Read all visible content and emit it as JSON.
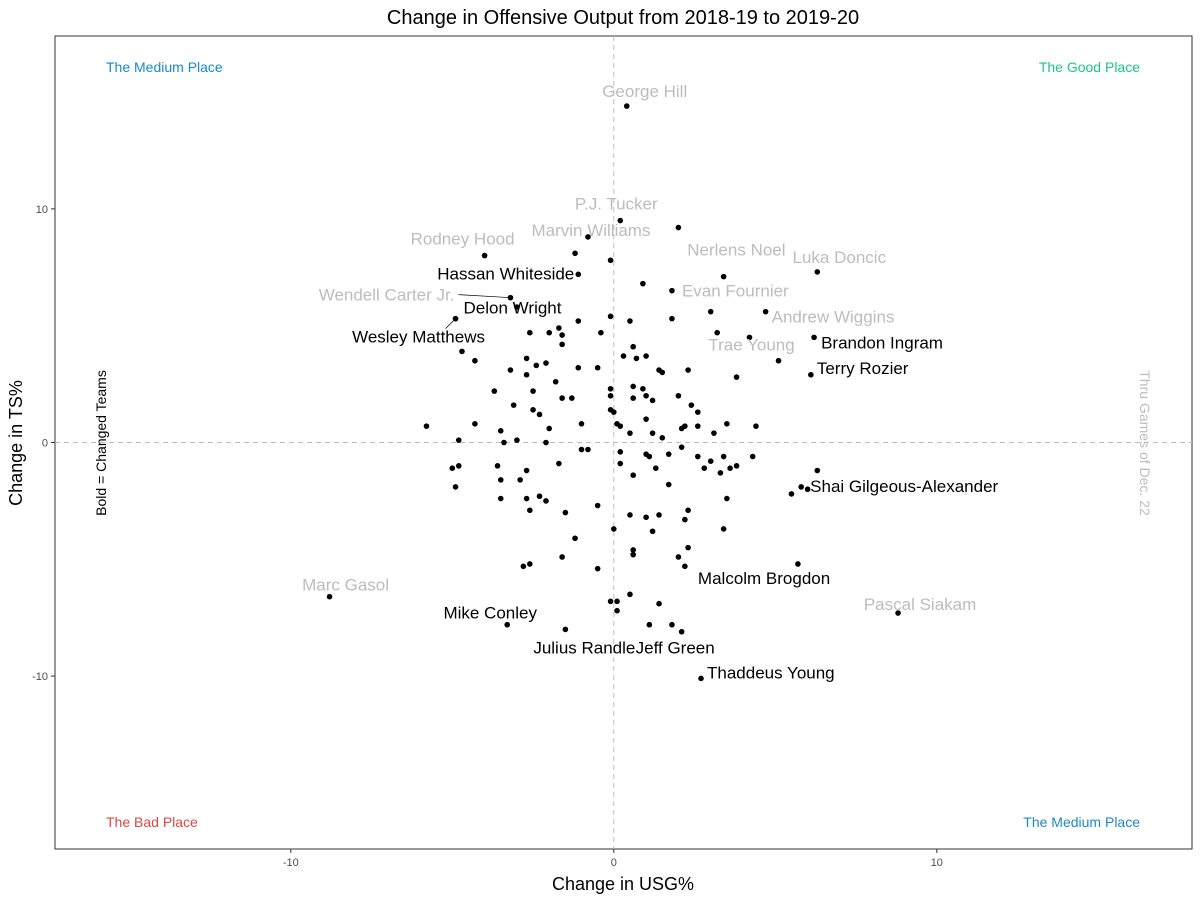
{
  "chart_data": {
    "type": "scatter",
    "title": "Change in Offensive Output from 2018-19 to 2019-20",
    "xlabel": "Change in USG%",
    "ylabel": "Change in TS%",
    "xlim": [
      -17.3,
      17.9
    ],
    "ylim": [
      -17.4,
      17.4
    ],
    "xticks": [
      -10,
      0,
      10
    ],
    "yticks": [
      -10,
      0,
      10
    ],
    "grid": false,
    "reference_lines": {
      "x": 0,
      "y": 0,
      "style": "dashed"
    },
    "side_notes": {
      "left": "Bold = Changed Teams",
      "right": "Thru Games of Dec. 22"
    },
    "quadrant_labels": [
      {
        "text": "The Medium Place",
        "corner": "top-left",
        "color": "#1a8ac6"
      },
      {
        "text": "The Good Place",
        "corner": "top-right",
        "color": "#1cc48a"
      },
      {
        "text": "The Bad Place",
        "corner": "bottom-left",
        "color": "#e04646"
      },
      {
        "text": "The Medium Place",
        "corner": "bottom-right",
        "color": "#1a8ac6"
      }
    ],
    "colors": {
      "point": "#000000",
      "same_team_label": "#bdbdbd",
      "changed_team_label": "#000000"
    },
    "labeled_points": [
      {
        "name": "George Hill",
        "x": 0.4,
        "y": 14.4,
        "changed_team": false
      },
      {
        "name": "P.J. Tucker",
        "x": 0.2,
        "y": 9.5,
        "changed_team": false
      },
      {
        "name": "Marvin Williams",
        "x": -0.8,
        "y": 8.8,
        "changed_team": false
      },
      {
        "name": "Nerlens Noel",
        "x": 2.0,
        "y": 9.2,
        "changed_team": false
      },
      {
        "name": "Rodney Hood",
        "x": -4.0,
        "y": 8.0,
        "changed_team": false
      },
      {
        "name": "Luka Doncic",
        "x": 6.3,
        "y": 7.3,
        "changed_team": false
      },
      {
        "name": "Hassan Whiteside",
        "x": -1.1,
        "y": 7.2,
        "changed_team": true
      },
      {
        "name": "Evan Fournier",
        "x": 1.8,
        "y": 6.5,
        "changed_team": false
      },
      {
        "name": "Wendell Carter Jr.",
        "x": -3.2,
        "y": 6.2,
        "changed_team": false
      },
      {
        "name": "Andrew Wiggins",
        "x": 4.7,
        "y": 5.6,
        "changed_team": false
      },
      {
        "name": "Delon Wright",
        "x": -4.9,
        "y": 5.3,
        "changed_team": true
      },
      {
        "name": "Wesley Matthews",
        "x": -4.9,
        "y": 5.3,
        "changed_team": true
      },
      {
        "name": "Brandon Ingram",
        "x": 6.2,
        "y": 4.5,
        "changed_team": true
      },
      {
        "name": "Trae Young",
        "x": 5.1,
        "y": 3.5,
        "changed_team": false
      },
      {
        "name": "Terry Rozier",
        "x": 6.1,
        "y": 2.9,
        "changed_team": true
      },
      {
        "name": "Shai Gilgeous-Alexander",
        "x": 5.8,
        "y": -1.9,
        "changed_team": true
      },
      {
        "name": "Malcolm Brogdon",
        "x": 5.7,
        "y": -5.2,
        "changed_team": true
      },
      {
        "name": "Marc Gasol",
        "x": -8.8,
        "y": -6.6,
        "changed_team": false
      },
      {
        "name": "Pascal Siakam",
        "x": 8.8,
        "y": -7.3,
        "changed_team": false
      },
      {
        "name": "Mike Conley",
        "x": -3.3,
        "y": -7.8,
        "changed_team": true
      },
      {
        "name": "Julius Randle",
        "x": -1.5,
        "y": -8.0,
        "changed_team": true
      },
      {
        "name": "Jeff Green",
        "x": 2.1,
        "y": -8.1,
        "changed_team": true
      },
      {
        "name": "Thaddeus Young",
        "x": 2.7,
        "y": -10.1,
        "changed_team": true
      }
    ],
    "points": [
      [
        -3.0,
        5.8
      ],
      [
        -1.2,
        8.1
      ],
      [
        -0.1,
        7.8
      ],
      [
        0.9,
        6.8
      ],
      [
        3.4,
        7.1
      ],
      [
        3.0,
        5.6
      ],
      [
        0.5,
        5.2
      ],
      [
        -0.1,
        5.4
      ],
      [
        -1.1,
        5.2
      ],
      [
        -1.7,
        4.9
      ],
      [
        -2.0,
        4.7
      ],
      [
        -1.6,
        4.6
      ],
      [
        -2.6,
        4.7
      ],
      [
        -0.4,
        4.7
      ],
      [
        1.8,
        5.3
      ],
      [
        3.2,
        4.7
      ],
      [
        4.2,
        4.5
      ],
      [
        -1.6,
        4.2
      ],
      [
        0.6,
        4.1
      ],
      [
        0.3,
        3.7
      ],
      [
        0.7,
        3.6
      ],
      [
        1.0,
        3.7
      ],
      [
        1.4,
        3.1
      ],
      [
        2.3,
        3.1
      ],
      [
        -4.7,
        3.9
      ],
      [
        -4.3,
        3.5
      ],
      [
        -3.2,
        3.1
      ],
      [
        -2.7,
        3.6
      ],
      [
        -2.4,
        3.3
      ],
      [
        -2.1,
        3.4
      ],
      [
        -2.7,
        2.9
      ],
      [
        -1.1,
        3.2
      ],
      [
        -0.5,
        3.2
      ],
      [
        1.5,
        3.0
      ],
      [
        3.1,
        0.4
      ],
      [
        3.8,
        2.8
      ],
      [
        -3.7,
        2.2
      ],
      [
        -2.5,
        2.2
      ],
      [
        -1.8,
        2.6
      ],
      [
        -1.6,
        1.9
      ],
      [
        -1.3,
        1.9
      ],
      [
        -0.1,
        2.3
      ],
      [
        0.6,
        2.4
      ],
      [
        0.9,
        2.3
      ],
      [
        1.0,
        2.0
      ],
      [
        1.2,
        1.8
      ],
      [
        0.6,
        1.9
      ],
      [
        -0.1,
        2.0
      ],
      [
        2.0,
        2.0
      ],
      [
        2.4,
        1.6
      ],
      [
        2.6,
        1.3
      ],
      [
        -3.1,
        1.6
      ],
      [
        -2.5,
        1.4
      ],
      [
        -2.3,
        1.2
      ],
      [
        -0.1,
        1.4
      ],
      [
        0.0,
        1.3
      ],
      [
        1.0,
        1.0
      ],
      [
        -4.3,
        0.8
      ],
      [
        -5.8,
        0.7
      ],
      [
        -3.5,
        0.5
      ],
      [
        -2.0,
        0.6
      ],
      [
        -1.0,
        0.8
      ],
      [
        0.1,
        0.8
      ],
      [
        0.2,
        0.7
      ],
      [
        0.5,
        0.4
      ],
      [
        1.2,
        0.4
      ],
      [
        1.5,
        0.2
      ],
      [
        2.1,
        0.6
      ],
      [
        2.2,
        0.7
      ],
      [
        2.6,
        0.7
      ],
      [
        3.5,
        0.8
      ],
      [
        4.4,
        0.7
      ],
      [
        -4.8,
        0.1
      ],
      [
        -3.4,
        0.0
      ],
      [
        -3.0,
        0.1
      ],
      [
        -2.1,
        0.0
      ],
      [
        -1.0,
        -0.3
      ],
      [
        -0.8,
        -0.3
      ],
      [
        0.2,
        -0.4
      ],
      [
        1.0,
        -0.5
      ],
      [
        1.1,
        -0.6
      ],
      [
        1.7,
        -0.5
      ],
      [
        2.1,
        -0.2
      ],
      [
        2.6,
        -0.6
      ],
      [
        3.0,
        -0.8
      ],
      [
        3.4,
        -0.6
      ],
      [
        4.3,
        -0.6
      ],
      [
        -5.0,
        -1.1
      ],
      [
        -4.8,
        -1.0
      ],
      [
        -3.6,
        -1.0
      ],
      [
        -3.5,
        -1.6
      ],
      [
        -2.9,
        -1.6
      ],
      [
        -2.7,
        -1.2
      ],
      [
        -1.7,
        -0.9
      ],
      [
        0.2,
        -0.9
      ],
      [
        0.6,
        -1.4
      ],
      [
        1.3,
        -1.1
      ],
      [
        2.8,
        -1.1
      ],
      [
        3.3,
        -1.3
      ],
      [
        3.6,
        -1.1
      ],
      [
        3.8,
        -1.0
      ],
      [
        6.3,
        -1.2
      ],
      [
        -4.9,
        -1.9
      ],
      [
        -2.7,
        -2.4
      ],
      [
        -2.3,
        -2.3
      ],
      [
        -2.1,
        -2.5
      ],
      [
        1.7,
        -1.8
      ],
      [
        3.5,
        -2.4
      ],
      [
        5.5,
        -2.2
      ],
      [
        6.0,
        -2.0
      ],
      [
        -3.5,
        -2.4
      ],
      [
        -2.6,
        -2.9
      ],
      [
        -1.5,
        -3.0
      ],
      [
        -0.5,
        -2.7
      ],
      [
        0.5,
        -3.1
      ],
      [
        1.0,
        -3.2
      ],
      [
        1.4,
        -3.1
      ],
      [
        2.2,
        -3.3
      ],
      [
        2.3,
        -2.9
      ],
      [
        3.4,
        -3.7
      ],
      [
        0.0,
        -3.7
      ],
      [
        1.2,
        -3.8
      ],
      [
        -1.2,
        -4.1
      ],
      [
        -1.6,
        -4.9
      ],
      [
        0.6,
        -4.6
      ],
      [
        0.6,
        -4.8
      ],
      [
        2.0,
        -4.9
      ],
      [
        2.3,
        -4.5
      ],
      [
        -2.8,
        -5.3
      ],
      [
        -2.6,
        -5.2
      ],
      [
        -0.5,
        -5.4
      ],
      [
        2.2,
        -5.3
      ],
      [
        0.5,
        -6.5
      ],
      [
        -0.1,
        -6.8
      ],
      [
        0.1,
        -6.8
      ],
      [
        0.1,
        -7.2
      ],
      [
        1.4,
        -6.9
      ],
      [
        1.1,
        -7.8
      ],
      [
        1.8,
        -7.8
      ]
    ]
  }
}
